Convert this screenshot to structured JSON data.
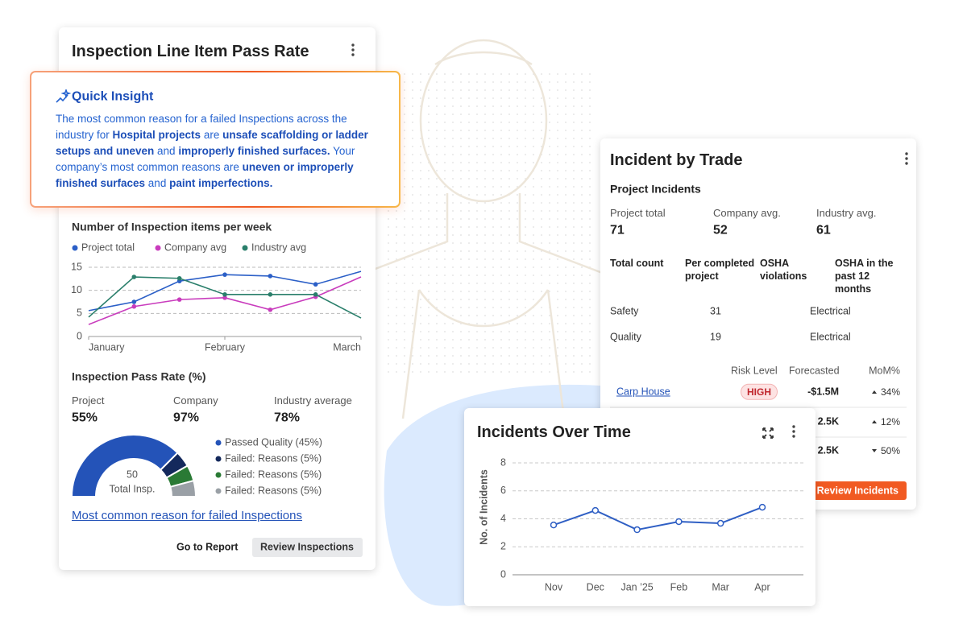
{
  "inspection_card": {
    "title": "Inspection Line Item Pass Rate",
    "insight": {
      "title": "Quick Insight",
      "text": [
        {
          "text": "The most common reason for a failed Inspections across the industry for ",
          "bold": false
        },
        {
          "text": "Hospital projects",
          "bold": true
        },
        {
          "text": " are ",
          "bold": false
        },
        {
          "text": "unsafe scaffolding or ladder setups and uneven",
          "bold": true
        },
        {
          "text": " and ",
          "bold": false
        },
        {
          "text": "improperly finished surfaces.",
          "bold": true
        },
        {
          "text": " Your company’s most common reasons are ",
          "bold": false
        },
        {
          "text": "uneven or improperly finished surfaces",
          "bold": true
        },
        {
          "text": " and ",
          "bold": false
        },
        {
          "text": "paint imperfections.",
          "bold": true
        }
      ]
    },
    "weekly_chart": {
      "type": "line",
      "title": "Number of Inspection items per week",
      "x": [
        0,
        1,
        2,
        3,
        4,
        5,
        6
      ],
      "xlim": [
        0,
        6
      ],
      "xticks": [
        {
          "value": 0,
          "label": "January"
        },
        {
          "value": 3,
          "label": "February"
        },
        {
          "value": 6,
          "label": "March"
        }
      ],
      "ylim": [
        0,
        15
      ],
      "yticks": [
        0,
        5,
        10,
        15
      ],
      "grid": true,
      "series": [
        {
          "name": "Project total",
          "color": "#2b5fc7",
          "values": [
            5.6,
            7.5,
            12,
            13.4,
            13.1,
            11.3,
            14.1
          ]
        },
        {
          "name": "Company avg",
          "color": "#c93cbd",
          "values": [
            2.6,
            6.5,
            8,
            8.4,
            5.8,
            8.6,
            12.9
          ]
        },
        {
          "name": "Industry avg",
          "color": "#2a7f6b",
          "values": [
            4.2,
            12.9,
            12.6,
            9.1,
            9.1,
            9.1,
            4
          ]
        }
      ]
    },
    "pass_rate": {
      "title": "Inspection Pass Rate (%)",
      "stats": [
        {
          "label": "Project",
          "value": "55%"
        },
        {
          "label": "Company",
          "value": "97%"
        },
        {
          "label": "Industry average",
          "value": "78%"
        }
      ],
      "gauge": {
        "type": "gauge",
        "total": 50,
        "total_label": "Total Insp.",
        "categories": [
          "Passed Quality (45%)",
          "Failed: Reasons (5%)",
          "Failed: Reasons (5%)",
          "Failed: Reasons (5%)"
        ],
        "values": [
          45,
          5,
          5,
          5
        ],
        "colors": [
          "#2453b8",
          "#14295c",
          "#2a7a35",
          "#9aa0a6"
        ]
      }
    },
    "link": "Most common reason for failed Inspections",
    "buttons": [
      "Go to Report",
      "Review Inspections"
    ]
  },
  "incident_card": {
    "title": "Incident by Trade",
    "subtitle": "Project Incidents",
    "stats": [
      {
        "label": "Project total",
        "value": 71
      },
      {
        "label": "Company avg.",
        "value": 52
      },
      {
        "label": "Industry avg.",
        "value": 61
      }
    ],
    "table": {
      "header": [
        "Total count",
        "Per completed project",
        "OSHA violations",
        "OSHA in the past 12 months"
      ],
      "rows": [
        [
          "Safety",
          "31",
          "Electrical"
        ],
        [
          "Quality",
          "19",
          "Electrical"
        ]
      ]
    },
    "trend_table": {
      "header": [
        "Risk Level",
        "Forecasted",
        "MoM%"
      ],
      "rows": [
        {
          "name": "Carp House",
          "risk": "HIGH",
          "forecast": "-$1.5M",
          "mom": "34%",
          "direction": "up"
        },
        {
          "forecast": "2.5K",
          "mom": "12%",
          "direction": "up"
        },
        {
          "forecast": "2.5K",
          "mom": "50%",
          "direction": "down"
        }
      ]
    },
    "button": "Review Incidents"
  },
  "over_time_card": {
    "title": "Incidents Over Time",
    "chart": {
      "type": "line",
      "y_label": "No. of Incidents",
      "categories": [
        "Nov",
        "Dec",
        "Jan ’25",
        "Feb",
        "Mar",
        "Apr"
      ],
      "values": [
        3.56,
        4.6,
        3.22,
        3.8,
        3.68,
        4.83
      ],
      "ylim": [
        0,
        8
      ],
      "yticks": [
        0,
        2,
        4,
        6,
        8
      ],
      "grid": true,
      "color": "#2f5fc4"
    }
  }
}
